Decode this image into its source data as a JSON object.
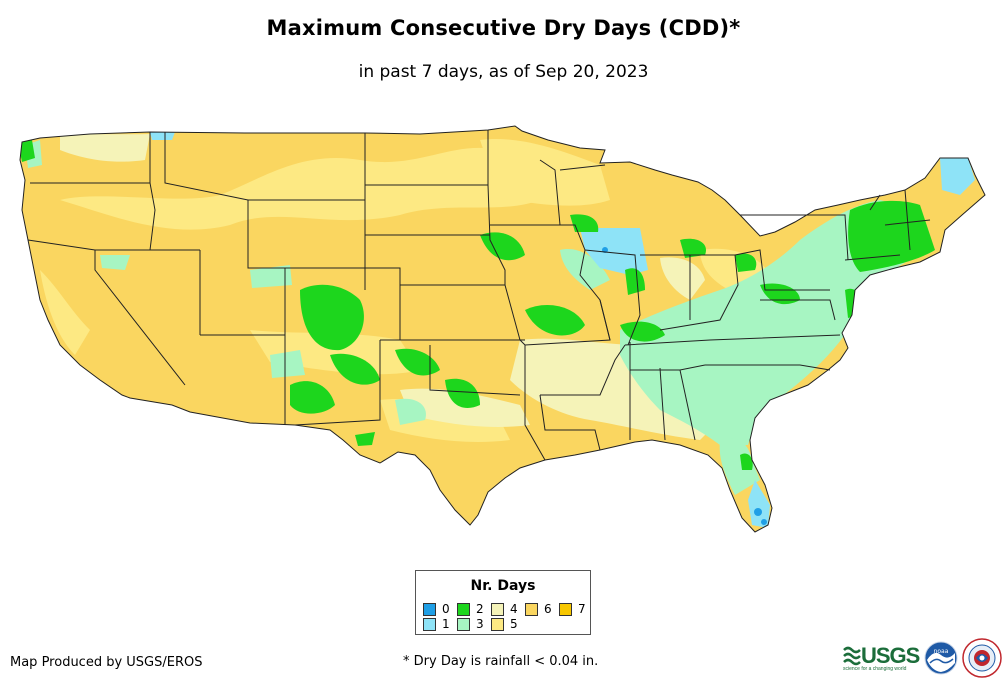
{
  "title": "Maximum Consecutive Dry Days (CDD)*",
  "subtitle": "in past 7 days, as of Sep 20, 2023",
  "legend": {
    "title": "Nr. Days",
    "items": [
      {
        "label": "0",
        "color": "#1f9fe6"
      },
      {
        "label": "1",
        "color": "#8ee3f7"
      },
      {
        "label": "2",
        "color": "#1dd61d"
      },
      {
        "label": "3",
        "color": "#a7f5c2"
      },
      {
        "label": "4",
        "color": "#f5f3b8"
      },
      {
        "label": "5",
        "color": "#fde983"
      },
      {
        "label": "6",
        "color": "#fad660"
      },
      {
        "label": "7",
        "color": "#f7c700"
      }
    ]
  },
  "credit": "Map Produced by USGS/EROS",
  "footnote": "* Dry Day is rainfall < 0.04 in.",
  "logos": {
    "usgs": "USGS",
    "usgs_tagline": "science for a changing world",
    "noaa": "noaa"
  }
}
